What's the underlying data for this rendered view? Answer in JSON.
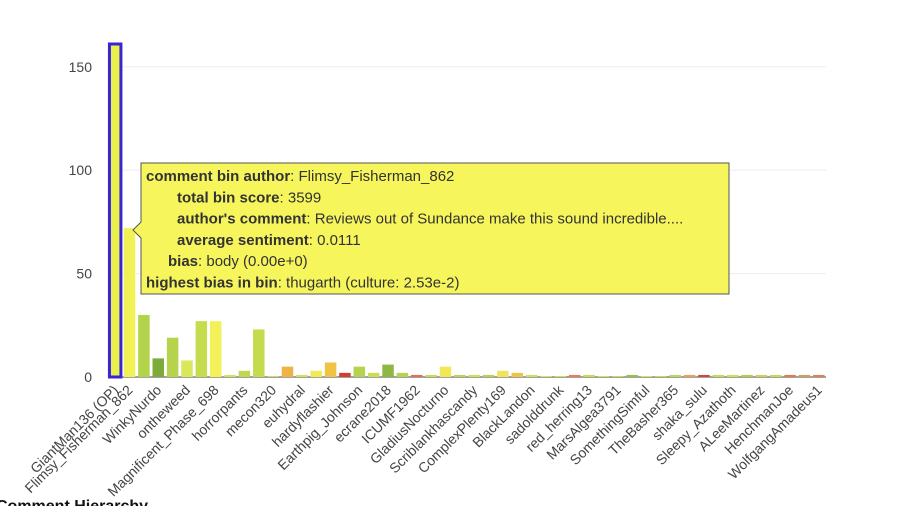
{
  "chart_data": {
    "type": "bar",
    "categories": [
      "GiantMan136 (OP)",
      "Flimsy_Fisherman_862",
      null,
      "WinkyNurdo",
      null,
      "ontheweed",
      null,
      "Magnificent_Phase_698",
      null,
      "horrorpants",
      null,
      "mecon320",
      null,
      "euhydral",
      null,
      "hardyflashier",
      null,
      "Earthpig_Johnson",
      null,
      "ecrane2018",
      null,
      "ICUMF1962",
      null,
      "GladiusNocturno",
      null,
      "Scriblankhascandy",
      null,
      "ComplexPlenty169",
      null,
      "BlackLandon",
      null,
      "sadolddrunk",
      null,
      "red_herring13",
      null,
      "MarsAlgea3791",
      null,
      "SomethingSimful",
      null,
      "TheBasher365",
      null,
      "shaka_sulu",
      null,
      "Sleepy_Azathoth",
      null,
      "ALeeMartinez",
      null,
      "HenchmanJoe",
      null,
      "WolfgangAmadeus1"
    ],
    "values": [
      161,
      72,
      30,
      9,
      19,
      8,
      27,
      27,
      1,
      3,
      23,
      0.5,
      5,
      1,
      3,
      7,
      2,
      5,
      2,
      6,
      2,
      1,
      1,
      5,
      1,
      1,
      1,
      3,
      2,
      1,
      0.5,
      0.5,
      1,
      1,
      0.5,
      0.5,
      1,
      0.5,
      0.5,
      1,
      1,
      1,
      1,
      1,
      1,
      1,
      1,
      1,
      1,
      1
    ],
    "colors": [
      "#e9f04b",
      "#f1f256",
      "#b3d34a",
      "#7dab3a",
      "#b6d44b",
      "#d9e75a",
      "#c6dc4f",
      "#f3f05a",
      "#d3e356",
      "#bfd84f",
      "#c4db4e",
      "#d8d654",
      "#efb245",
      "#cfe158",
      "#f2ea55",
      "#efc444",
      "#d23f2e",
      "#b6d34d",
      "#c9de52",
      "#8fb842",
      "#b7d44d",
      "#e0714f",
      "#c8dc52",
      "#f2e856",
      "#bcd650",
      "#d0e055",
      "#b8d44d",
      "#f2e45a",
      "#efc444",
      "#cfe055",
      "#d8e25a",
      "#cfe055",
      "#e28050",
      "#c4da50",
      "#d3e258",
      "#c8dc52",
      "#9cc046",
      "#d8e25a",
      "#c8dc52",
      "#bed650",
      "#e5a45a",
      "#cf4a38",
      "#c4da50",
      "#cfe055",
      "#b0cf4a",
      "#d8c860",
      "#c6db50",
      "#e27a50",
      "#d0a060",
      "#e0804e"
    ],
    "selected_index": 0,
    "ylim": [
      0,
      161
    ],
    "yticks": [
      0,
      50,
      100,
      150
    ],
    "grid": true,
    "tooltip": {
      "lines": [
        {
          "key": "comment bin author",
          "value": ": Flimsy_Fisherman_862"
        },
        {
          "key": "total bin score",
          "value": ": 3599"
        },
        {
          "key": "author's comment",
          "value": ": Reviews out of Sundance make this sound incredible...."
        },
        {
          "key": "average sentiment",
          "value": ": 0.0111"
        },
        {
          "key": "bias",
          "value": ": body (0.00e+0)"
        },
        {
          "key": "highest bias in bin",
          "value": ": thugarth (culture: 2.53e-2)"
        }
      ]
    },
    "section_title": "Comment Hierarchy"
  }
}
